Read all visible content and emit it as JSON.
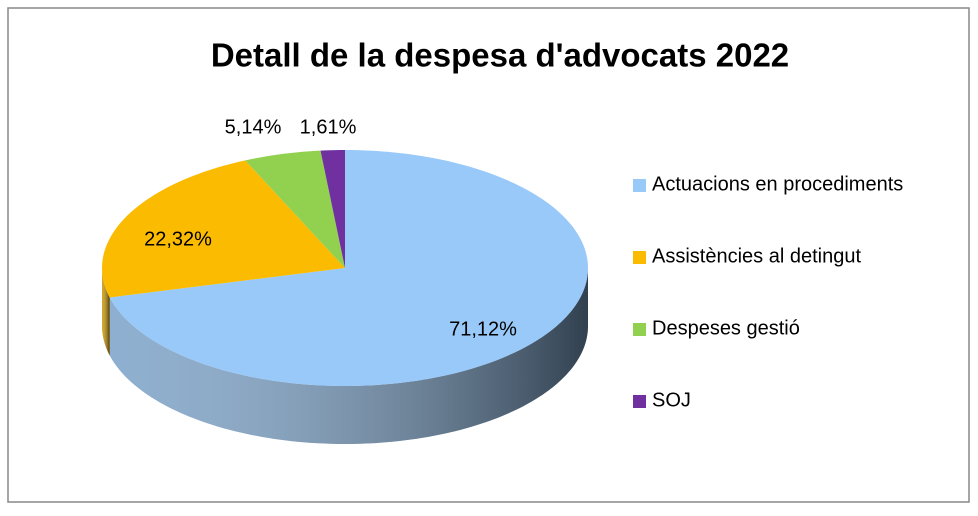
{
  "chart_data": {
    "type": "pie3d",
    "title": "Detall de la despesa d'advocats 2022",
    "categories": [
      "Actuacions en procediments",
      "Assistències al detingut",
      "Despeses gestió",
      "SOJ"
    ],
    "values": [
      71.12,
      22.32,
      5.14,
      1.61
    ],
    "value_labels": [
      "71,12%",
      "22,32%",
      "5,14%",
      "1,61%"
    ],
    "colors": [
      "#99c9f9",
      "#fbbb00",
      "#92d050",
      "#7030a0"
    ],
    "legend": "right"
  }
}
